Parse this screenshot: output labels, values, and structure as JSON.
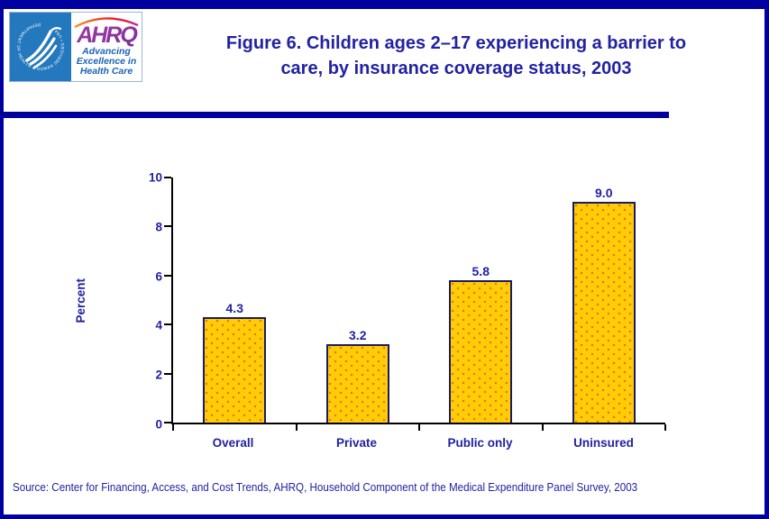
{
  "header": {
    "title_lines": [
      "Figure 6. Children ages 2–17 experiencing a barrier to",
      "care, by insurance coverage status, 2003"
    ],
    "logo": {
      "acronym": "AHRQ",
      "tagline_lines": [
        "Advancing",
        "Excellence in",
        "Health Care"
      ],
      "seal_text": "DEPARTMENT OF HEALTH & HUMAN SERVICES • USA"
    }
  },
  "chart_data": {
    "type": "bar",
    "title": "Figure 6. Children ages 2–17 experiencing a barrier to care, by insurance coverage status, 2003",
    "categories": [
      "Overall",
      "Private",
      "Public only",
      "Uninsured"
    ],
    "values": [
      4.3,
      3.2,
      5.8,
      9.0
    ],
    "value_labels": [
      "4.3",
      "3.2",
      "5.8",
      "9.0"
    ],
    "xlabel": "",
    "ylabel": "Percent",
    "ylim": [
      0,
      10
    ],
    "yticks": [
      0,
      2,
      4,
      6,
      8,
      10
    ],
    "grid": false,
    "legend": "none"
  },
  "footer": {
    "source": "Source: Center for Financing, Access, and Cost Trends, AHRQ, Household Component of the Medical Expenditure Panel Survey, 2003"
  },
  "colors": {
    "page_border": "#0000A0",
    "navy_text": "#2222A2",
    "bar_fill": "#FFCD05",
    "bar_dot": "#F26A21",
    "bar_border": "#1B1B60",
    "axis": "#000000",
    "hhs_blue": "#2378BE",
    "ahrq_purple": "#93278F",
    "tagline_blue": "#1B63B5"
  }
}
